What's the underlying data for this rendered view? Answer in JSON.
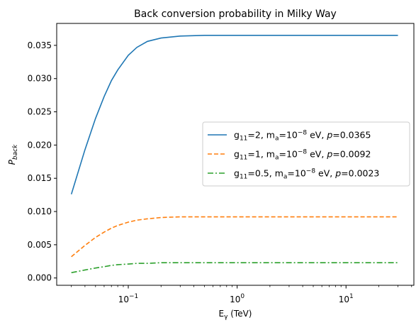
{
  "chart_data": {
    "type": "line",
    "title": "Back conversion probability in Milky Way",
    "xlabel": "E",
    "xlabel_sub": "γ",
    "xlabel_tail": " (TeV)",
    "ylabel": "P",
    "ylabel_sub": "back",
    "xscale": "log",
    "xlim": [
      0.022,
      42
    ],
    "ylim": [
      -0.0011,
      0.0383
    ],
    "yticks": [
      {
        "value": 0.0,
        "label": "0.000"
      },
      {
        "value": 0.005,
        "label": "0.005"
      },
      {
        "value": 0.01,
        "label": "0.010"
      },
      {
        "value": 0.015,
        "label": "0.015"
      },
      {
        "value": 0.02,
        "label": "0.020"
      },
      {
        "value": 0.025,
        "label": "0.025"
      },
      {
        "value": 0.03,
        "label": "0.030"
      },
      {
        "value": 0.035,
        "label": "0.035"
      }
    ],
    "xticks": [
      {
        "value": 0.1,
        "base": "10",
        "exp": "−1"
      },
      {
        "value": 1,
        "base": "10",
        "exp": "0"
      },
      {
        "value": 10,
        "base": "10",
        "exp": "1"
      }
    ],
    "legend_position": "center-right",
    "x": [
      0.03,
      0.04,
      0.05,
      0.06,
      0.07,
      0.08,
      0.1,
      0.12,
      0.15,
      0.2,
      0.3,
      0.5,
      1,
      3,
      10,
      30
    ],
    "series": [
      {
        "g": "11",
        "g_val": "=2",
        "m": "a",
        "m_val": "=10",
        "m_exp": "−8",
        "unit": " eV, ",
        "p_sym": "p",
        "p_val": "=0.0365",
        "color": "#1f77b4",
        "dash": "solid",
        "values": [
          0.0126,
          0.0193,
          0.024,
          0.0273,
          0.0297,
          0.0313,
          0.0335,
          0.0347,
          0.0356,
          0.0361,
          0.0364,
          0.0365,
          0.0365,
          0.0365,
          0.0365,
          0.0365
        ]
      },
      {
        "g": "11",
        "g_val": "=1",
        "m": "a",
        "m_val": "=10",
        "m_exp": "−8",
        "unit": " eV, ",
        "p_sym": "p",
        "p_val": "=0.0092",
        "color": "#ff7f0e",
        "dash": "dashed",
        "values": [
          0.0032,
          0.0049,
          0.0061,
          0.0069,
          0.0075,
          0.0079,
          0.0084,
          0.0087,
          0.0089,
          0.0091,
          0.0092,
          0.0092,
          0.0092,
          0.0092,
          0.0092,
          0.0092
        ]
      },
      {
        "g": "11",
        "g_val": "=0.5",
        "m": "a",
        "m_val": "=10",
        "m_exp": "−8",
        "unit": " eV, ",
        "p_sym": "p",
        "p_val": "=0.0023",
        "color": "#2ca02c",
        "dash": "dashdot",
        "values": [
          0.0008,
          0.0012,
          0.0015,
          0.0017,
          0.0019,
          0.002,
          0.0021,
          0.0022,
          0.0022,
          0.0023,
          0.0023,
          0.0023,
          0.0023,
          0.0023,
          0.0023,
          0.0023
        ]
      }
    ]
  }
}
